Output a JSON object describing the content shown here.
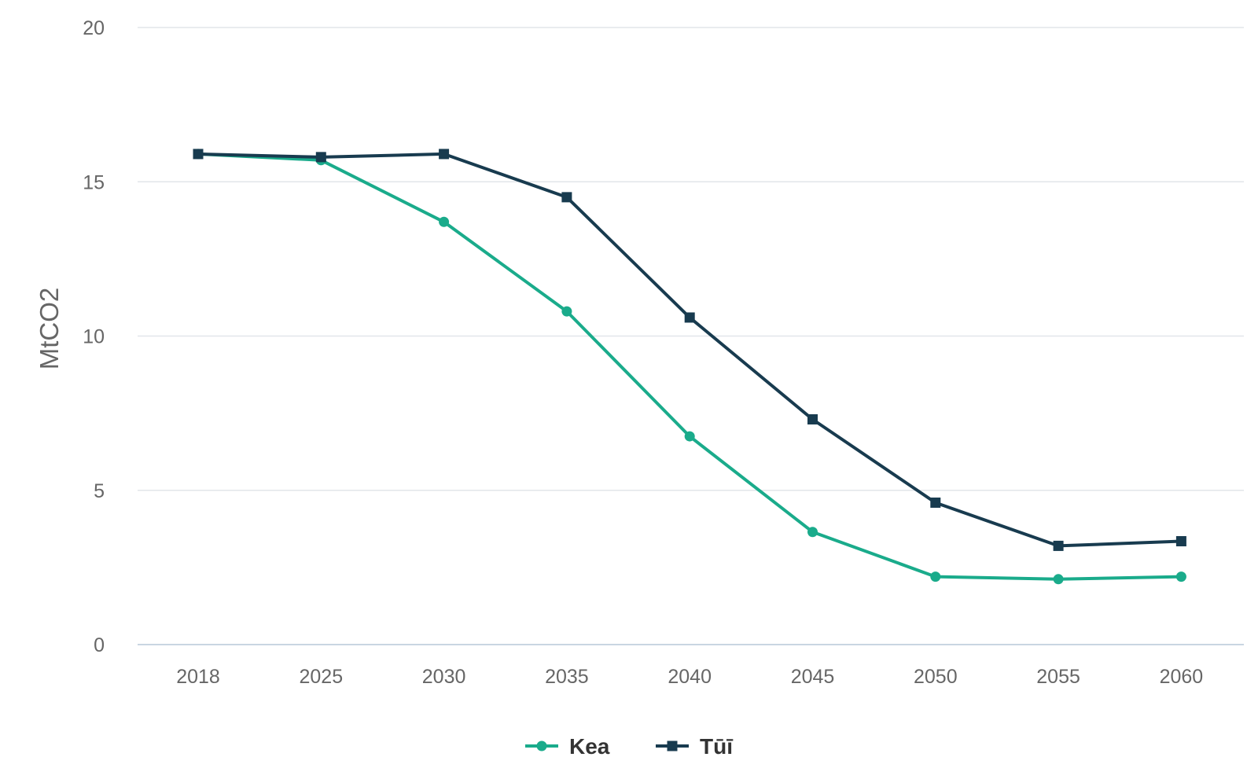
{
  "chart_data": {
    "type": "line",
    "title": "",
    "xlabel": "",
    "ylabel": "MtCO2",
    "categories": [
      "2018",
      "2025",
      "2030",
      "2035",
      "2040",
      "2045",
      "2050",
      "2055",
      "2060"
    ],
    "ylim": [
      0,
      20
    ],
    "yticks": [
      0,
      5,
      10,
      15,
      20
    ],
    "grid": true,
    "legend_position": "bottom-center",
    "series": [
      {
        "name": "Kea",
        "color": "#1aab8b",
        "marker": "circle",
        "values": [
          15.9,
          15.7,
          13.7,
          10.8,
          6.75,
          3.65,
          2.2,
          2.12,
          2.2
        ]
      },
      {
        "name": "Tūī",
        "color": "#183b4f",
        "marker": "square",
        "values": [
          15.9,
          15.8,
          15.9,
          14.5,
          10.6,
          7.3,
          4.6,
          3.2,
          3.35
        ]
      }
    ]
  }
}
